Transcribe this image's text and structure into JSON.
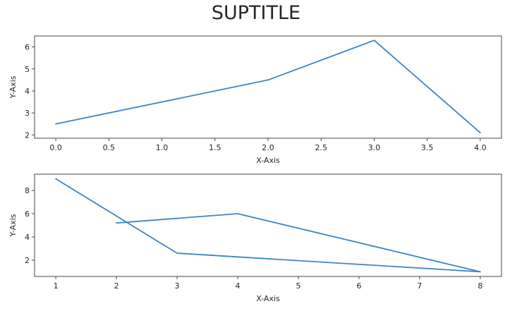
{
  "suptitle": "SUPTITLE",
  "style": {
    "line_color": "#3d85c6",
    "text_color": "#262626",
    "spine_color": "#333333"
  },
  "chart_data": [
    {
      "type": "line",
      "title": "",
      "xlabel": "X-Axis",
      "ylabel": "Y-Axis",
      "xlim": [
        -0.2,
        4.2
      ],
      "ylim": [
        1.85,
        6.5
      ],
      "grid": false,
      "xticks": [
        0.0,
        0.5,
        1.0,
        1.5,
        2.0,
        2.5,
        3.0,
        3.5,
        4.0
      ],
      "xtick_labels": [
        "0.0",
        "0.5",
        "1.0",
        "1.5",
        "2.0",
        "2.5",
        "3.0",
        "3.5",
        "4.0"
      ],
      "yticks": [
        2,
        3,
        4,
        5,
        6
      ],
      "ytick_labels": [
        "2",
        "3",
        "4",
        "5",
        "6"
      ],
      "series": [
        {
          "x": [
            0,
            2,
            3,
            4
          ],
          "y": [
            2.5,
            4.5,
            6.3,
            2.1
          ]
        }
      ]
    },
    {
      "type": "line",
      "title": "",
      "xlabel": "X-Axis",
      "ylabel": "Y-Axis",
      "xlim": [
        0.65,
        8.35
      ],
      "ylim": [
        0.6,
        9.4
      ],
      "grid": false,
      "xticks": [
        1,
        2,
        3,
        4,
        5,
        6,
        7,
        8
      ],
      "xtick_labels": [
        "1",
        "2",
        "3",
        "4",
        "5",
        "6",
        "7",
        "8"
      ],
      "yticks": [
        2,
        4,
        6,
        8
      ],
      "ytick_labels": [
        "2",
        "4",
        "6",
        "8"
      ],
      "series": [
        {
          "x": [
            1,
            3,
            8,
            4,
            2
          ],
          "y": [
            9,
            2.6,
            1,
            6,
            5.2
          ]
        }
      ]
    }
  ]
}
